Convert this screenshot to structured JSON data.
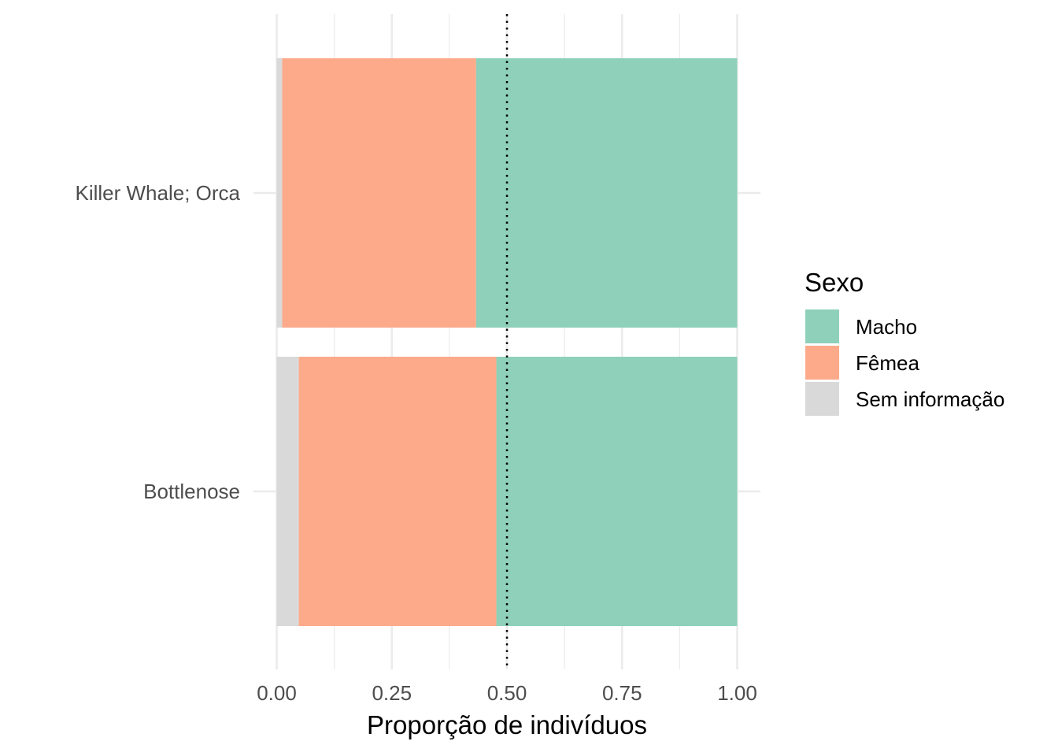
{
  "chart_data": {
    "type": "bar",
    "orientation": "horizontal",
    "stacked": true,
    "categories": [
      "Killer Whale; Orca",
      "Bottlenose"
    ],
    "series": [
      {
        "name": "Sem informação",
        "color": "#d9d9d9",
        "values": [
          0.012,
          0.048
        ]
      },
      {
        "name": "Fêmea",
        "color": "#fcaa8a",
        "values": [
          0.421,
          0.429
        ]
      },
      {
        "name": "Macho",
        "color": "#8ed0b9",
        "values": [
          0.567,
          0.523
        ]
      }
    ],
    "xlabel": "Proporção de indivíduos",
    "ylabel": "",
    "xlim": [
      0,
      1
    ],
    "xticks": [
      "0.00",
      "0.25",
      "0.50",
      "0.75",
      "1.00"
    ],
    "reference_line": {
      "x": 0.5,
      "style": "dotted"
    },
    "grid": true,
    "legend": {
      "title": "Sexo",
      "position": "right",
      "entries": [
        "Macho",
        "Fêmea",
        "Sem informação"
      ]
    }
  }
}
